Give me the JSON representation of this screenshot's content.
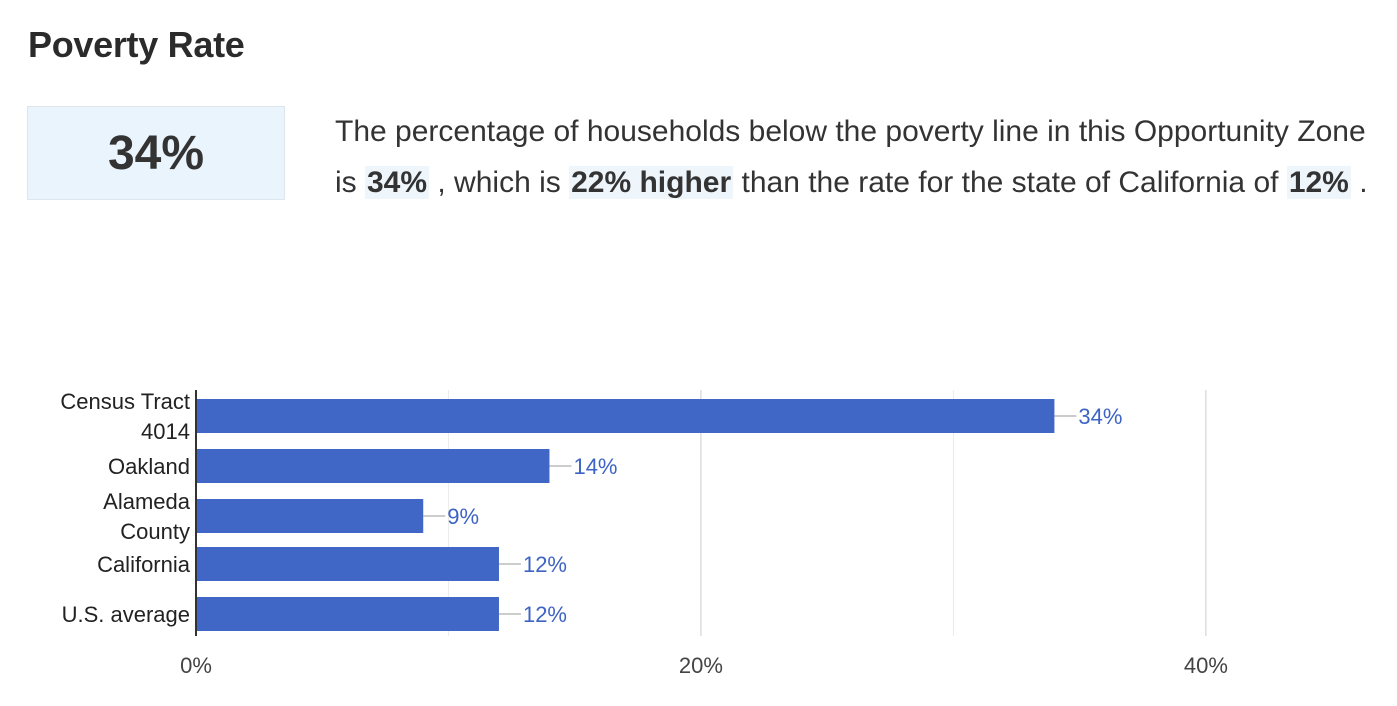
{
  "header": {
    "title": "Poverty Rate"
  },
  "stat": {
    "value": "34%"
  },
  "description": {
    "p1": "The percentage of households below the poverty line in this Opportunity Zone is ",
    "v1": "34%",
    "p2": " , which is ",
    "v2": "22% higher",
    "p3": " than the rate for the state of California of ",
    "v3": "12%",
    "p4": " ."
  },
  "chart_data": {
    "type": "bar",
    "orientation": "horizontal",
    "categories": [
      [
        "Census Tract",
        "4014"
      ],
      [
        "Oakland"
      ],
      [
        "Alameda",
        "County"
      ],
      [
        "California"
      ],
      [
        "U.S. average"
      ]
    ],
    "values": [
      34,
      14,
      9,
      12,
      12
    ],
    "data_labels": [
      "34%",
      "14%",
      "9%",
      "12%",
      "12%"
    ],
    "x_ticks": [
      {
        "value": 0,
        "label": "0%"
      },
      {
        "value": 20,
        "label": "20%"
      },
      {
        "value": 40,
        "label": "40%"
      }
    ],
    "xlim": [
      0,
      46.5
    ],
    "grid": true,
    "bar_color": "#4066c6",
    "label_color": "#3d63c4",
    "title": "",
    "xlabel": "",
    "ylabel": ""
  }
}
